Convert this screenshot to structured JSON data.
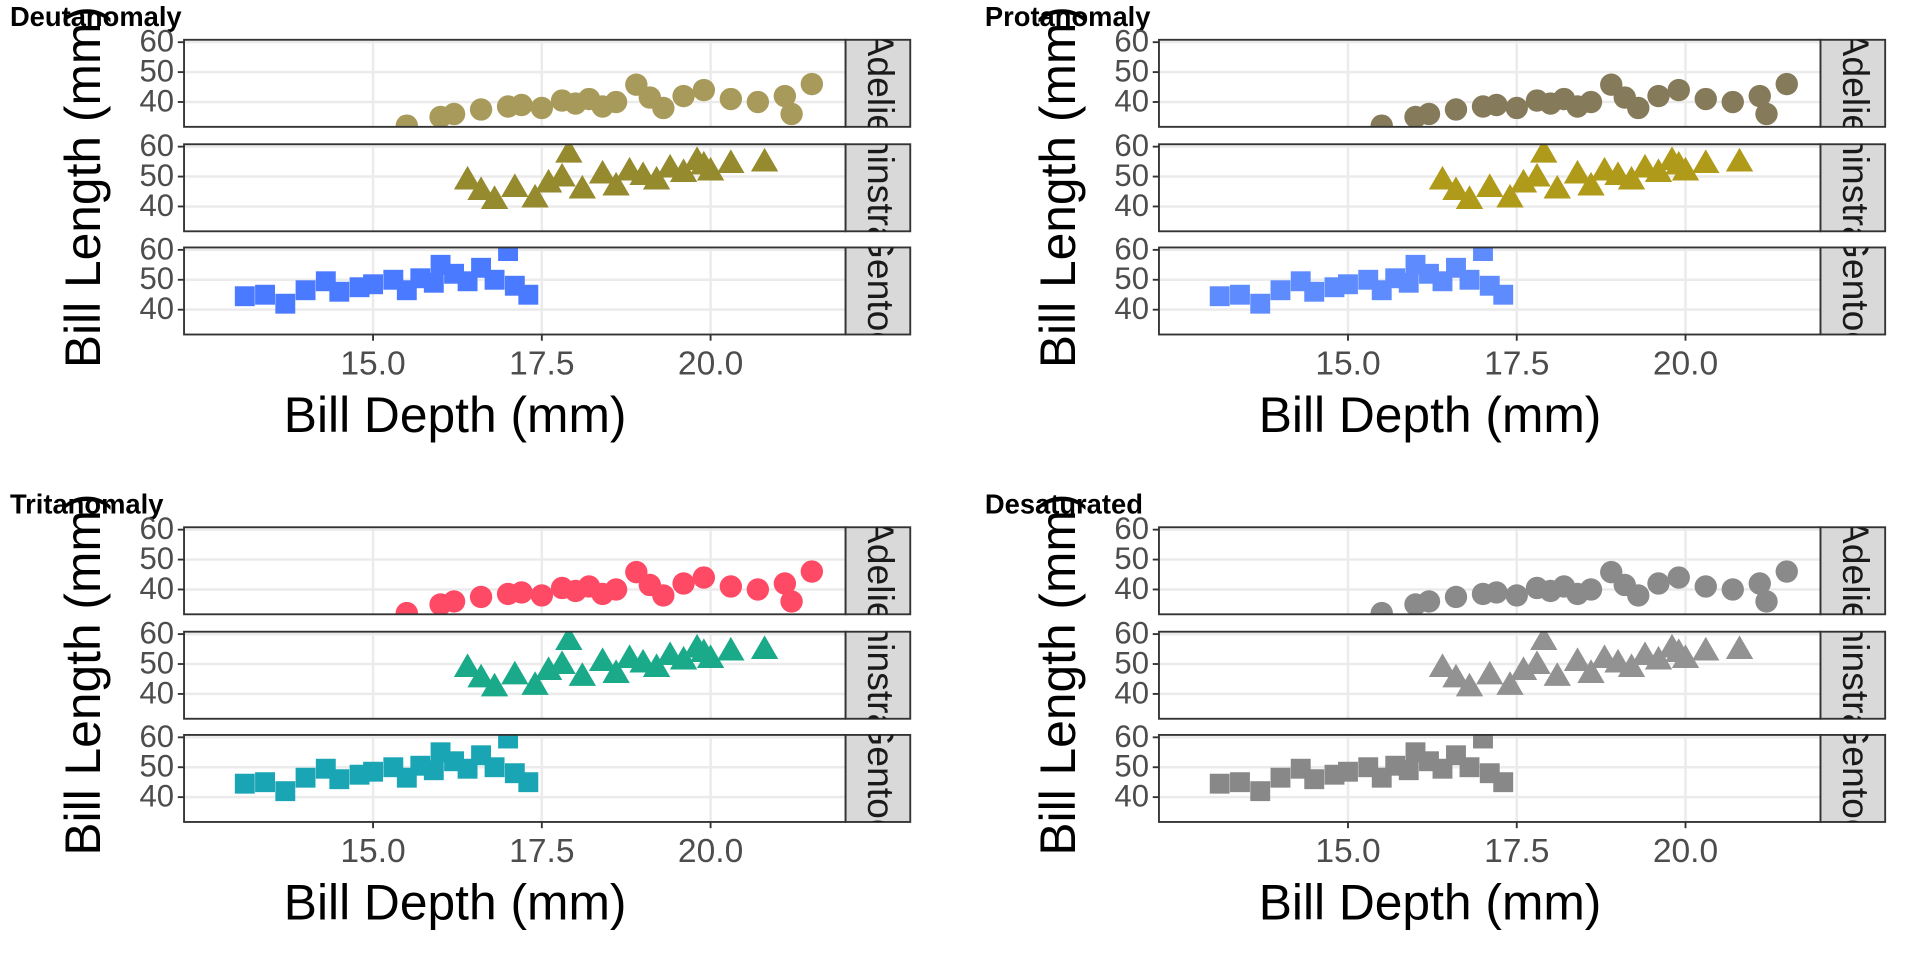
{
  "chart_data": [
    {
      "type": "scatter",
      "title": "Deutanomaly",
      "x_label": "Bill Depth (mm)",
      "y_label": "Bill Length (mm)",
      "xlim": [
        12.2,
        22.0
      ],
      "ylim": [
        31.7,
        60.8
      ],
      "xticks": [
        {
          "value": 15,
          "label": "15.0"
        },
        {
          "value": 17.5,
          "label": "17.5"
        },
        {
          "value": 20,
          "label": "20.0"
        }
      ],
      "yticks": [
        40,
        50,
        60
      ],
      "grid": true,
      "series": [
        {
          "name": "Adelie",
          "color": "#a89a5a",
          "shape": "circle",
          "x": [
            15.5,
            16.0,
            16.2,
            16.6,
            17.0,
            17.2,
            17.5,
            17.8,
            18.0,
            18.2,
            18.4,
            18.6,
            18.9,
            19.1,
            19.3,
            19.6,
            19.9,
            20.3,
            20.7,
            21.1,
            21.2,
            21.5
          ],
          "values": [
            32.1,
            35.0,
            36.0,
            37.5,
            38.5,
            39.0,
            38.0,
            40.5,
            39.5,
            41.0,
            38.5,
            40.0,
            45.8,
            41.5,
            38.0,
            42.0,
            44.0,
            41.0,
            40.0,
            42.0,
            36.0,
            46.0
          ]
        },
        {
          "name": "Chinstrap",
          "color": "#968a2e",
          "shape": "triangle",
          "x": [
            16.4,
            16.6,
            16.8,
            17.1,
            17.4,
            17.6,
            17.8,
            17.9,
            18.1,
            18.4,
            18.6,
            18.8,
            19.0,
            19.2,
            19.4,
            19.6,
            19.8,
            19.9,
            20.0,
            20.3,
            20.8
          ],
          "values": [
            49.0,
            45.5,
            42.5,
            46.5,
            43.0,
            48.0,
            50.0,
            58.0,
            46.0,
            51.0,
            47.0,
            52.0,
            50.5,
            49.0,
            53.0,
            51.5,
            55.5,
            54.0,
            52.0,
            54.5,
            55.0
          ]
        },
        {
          "name": "Gentoo",
          "color": "#4a7aff",
          "shape": "square",
          "x": [
            13.1,
            13.4,
            13.7,
            14.0,
            14.3,
            14.5,
            14.8,
            15.0,
            15.3,
            15.5,
            15.7,
            15.9,
            16.0,
            16.2,
            16.4,
            16.6,
            16.8,
            17.0,
            17.1,
            17.3
          ],
          "values": [
            44.5,
            45.0,
            42.0,
            46.5,
            49.5,
            46.0,
            47.5,
            48.5,
            50.0,
            46.5,
            50.5,
            49.0,
            55.0,
            52.0,
            49.5,
            54.0,
            50.0,
            59.6,
            48.0,
            45.0
          ]
        }
      ]
    },
    {
      "type": "scatter",
      "title": "Protanomaly",
      "x_label": "Bill Depth (mm)",
      "y_label": "Bill Length (mm)",
      "xlim": [
        12.2,
        22.0
      ],
      "ylim": [
        31.7,
        60.8
      ],
      "xticks": [
        {
          "value": 15,
          "label": "15.0"
        },
        {
          "value": 17.5,
          "label": "17.5"
        },
        {
          "value": 20,
          "label": "20.0"
        }
      ],
      "yticks": [
        40,
        50,
        60
      ],
      "grid": true,
      "series": [
        {
          "name": "Adelie",
          "color": "#857a5a",
          "shape": "circle",
          "x": [
            15.5,
            16.0,
            16.2,
            16.6,
            17.0,
            17.2,
            17.5,
            17.8,
            18.0,
            18.2,
            18.4,
            18.6,
            18.9,
            19.1,
            19.3,
            19.6,
            19.9,
            20.3,
            20.7,
            21.1,
            21.2,
            21.5
          ],
          "values": [
            32.1,
            35.0,
            36.0,
            37.5,
            38.5,
            39.0,
            38.0,
            40.5,
            39.5,
            41.0,
            38.5,
            40.0,
            45.8,
            41.5,
            38.0,
            42.0,
            44.0,
            41.0,
            40.0,
            42.0,
            36.0,
            46.0
          ]
        },
        {
          "name": "Chinstrap",
          "color": "#b09a1a",
          "shape": "triangle",
          "x": [
            16.4,
            16.6,
            16.8,
            17.1,
            17.4,
            17.6,
            17.8,
            17.9,
            18.1,
            18.4,
            18.6,
            18.8,
            19.0,
            19.2,
            19.4,
            19.6,
            19.8,
            19.9,
            20.0,
            20.3,
            20.8
          ],
          "values": [
            49.0,
            45.5,
            42.5,
            46.5,
            43.0,
            48.0,
            50.0,
            58.0,
            46.0,
            51.0,
            47.0,
            52.0,
            50.5,
            49.0,
            53.0,
            51.5,
            55.5,
            54.0,
            52.0,
            54.5,
            55.0
          ]
        },
        {
          "name": "Gentoo",
          "color": "#5e8cff",
          "shape": "square",
          "x": [
            13.1,
            13.4,
            13.7,
            14.0,
            14.3,
            14.5,
            14.8,
            15.0,
            15.3,
            15.5,
            15.7,
            15.9,
            16.0,
            16.2,
            16.4,
            16.6,
            16.8,
            17.0,
            17.1,
            17.3
          ],
          "values": [
            44.5,
            45.0,
            42.0,
            46.5,
            49.5,
            46.0,
            47.5,
            48.5,
            50.0,
            46.5,
            50.5,
            49.0,
            55.0,
            52.0,
            49.5,
            54.0,
            50.0,
            59.6,
            48.0,
            45.0
          ]
        }
      ]
    },
    {
      "type": "scatter",
      "title": "Tritanomaly",
      "x_label": "Bill Depth (mm)",
      "y_label": "Bill Length (mm)",
      "xlim": [
        12.2,
        22.0
      ],
      "ylim": [
        31.7,
        60.8
      ],
      "xticks": [
        {
          "value": 15,
          "label": "15.0"
        },
        {
          "value": 17.5,
          "label": "17.5"
        },
        {
          "value": 20,
          "label": "20.0"
        }
      ],
      "yticks": [
        40,
        50,
        60
      ],
      "grid": true,
      "series": [
        {
          "name": "Adelie",
          "color": "#ff4a66",
          "shape": "circle",
          "x": [
            15.5,
            16.0,
            16.2,
            16.6,
            17.0,
            17.2,
            17.5,
            17.8,
            18.0,
            18.2,
            18.4,
            18.6,
            18.9,
            19.1,
            19.3,
            19.6,
            19.9,
            20.3,
            20.7,
            21.1,
            21.2,
            21.5
          ],
          "values": [
            32.1,
            35.0,
            36.0,
            37.5,
            38.5,
            39.0,
            38.0,
            40.5,
            39.5,
            41.0,
            38.5,
            40.0,
            45.8,
            41.5,
            38.0,
            42.0,
            44.0,
            41.0,
            40.0,
            42.0,
            36.0,
            46.0
          ]
        },
        {
          "name": "Chinstrap",
          "color": "#1aaa8a",
          "shape": "triangle",
          "x": [
            16.4,
            16.6,
            16.8,
            17.1,
            17.4,
            17.6,
            17.8,
            17.9,
            18.1,
            18.4,
            18.6,
            18.8,
            19.0,
            19.2,
            19.4,
            19.6,
            19.8,
            19.9,
            20.0,
            20.3,
            20.8
          ],
          "values": [
            49.0,
            45.5,
            42.5,
            46.5,
            43.0,
            48.0,
            50.0,
            58.0,
            46.0,
            51.0,
            47.0,
            52.0,
            50.5,
            49.0,
            53.0,
            51.5,
            55.5,
            54.0,
            52.0,
            54.5,
            55.0
          ]
        },
        {
          "name": "Gentoo",
          "color": "#1aa5b5",
          "shape": "square",
          "x": [
            13.1,
            13.4,
            13.7,
            14.0,
            14.3,
            14.5,
            14.8,
            15.0,
            15.3,
            15.5,
            15.7,
            15.9,
            16.0,
            16.2,
            16.4,
            16.6,
            16.8,
            17.0,
            17.1,
            17.3
          ],
          "values": [
            44.5,
            45.0,
            42.0,
            46.5,
            49.5,
            46.0,
            47.5,
            48.5,
            50.0,
            46.5,
            50.5,
            49.0,
            55.0,
            52.0,
            49.5,
            54.0,
            50.0,
            59.6,
            48.0,
            45.0
          ]
        }
      ]
    },
    {
      "type": "scatter",
      "title": "Desaturated",
      "x_label": "Bill Depth (mm)",
      "y_label": "Bill Length (mm)",
      "xlim": [
        12.2,
        22.0
      ],
      "ylim": [
        31.7,
        60.8
      ],
      "xticks": [
        {
          "value": 15,
          "label": "15.0"
        },
        {
          "value": 17.5,
          "label": "17.5"
        },
        {
          "value": 20,
          "label": "20.0"
        }
      ],
      "yticks": [
        40,
        50,
        60
      ],
      "grid": true,
      "series": [
        {
          "name": "Adelie",
          "color": "#8a8a8a",
          "shape": "circle",
          "x": [
            15.5,
            16.0,
            16.2,
            16.6,
            17.0,
            17.2,
            17.5,
            17.8,
            18.0,
            18.2,
            18.4,
            18.6,
            18.9,
            19.1,
            19.3,
            19.6,
            19.9,
            20.3,
            20.7,
            21.1,
            21.2,
            21.5
          ],
          "values": [
            32.1,
            35.0,
            36.0,
            37.5,
            38.5,
            39.0,
            38.0,
            40.5,
            39.5,
            41.0,
            38.5,
            40.0,
            45.8,
            41.5,
            38.0,
            42.0,
            44.0,
            41.0,
            40.0,
            42.0,
            36.0,
            46.0
          ]
        },
        {
          "name": "Chinstrap",
          "color": "#929292",
          "shape": "triangle",
          "x": [
            16.4,
            16.6,
            16.8,
            17.1,
            17.4,
            17.6,
            17.8,
            17.9,
            18.1,
            18.4,
            18.6,
            18.8,
            19.0,
            19.2,
            19.4,
            19.6,
            19.8,
            19.9,
            20.0,
            20.3,
            20.8
          ],
          "values": [
            49.0,
            45.5,
            42.5,
            46.5,
            43.0,
            48.0,
            50.0,
            58.0,
            46.0,
            51.0,
            47.0,
            52.0,
            50.5,
            49.0,
            53.0,
            51.5,
            55.5,
            54.0,
            52.0,
            54.5,
            55.0
          ]
        },
        {
          "name": "Gentoo",
          "color": "#888888",
          "shape": "square",
          "x": [
            13.1,
            13.4,
            13.7,
            14.0,
            14.3,
            14.5,
            14.8,
            15.0,
            15.3,
            15.5,
            15.7,
            15.9,
            16.0,
            16.2,
            16.4,
            16.6,
            16.8,
            17.0,
            17.1,
            17.3
          ],
          "values": [
            44.5,
            45.0,
            42.0,
            46.5,
            49.5,
            46.0,
            47.5,
            48.5,
            50.0,
            46.5,
            50.5,
            49.0,
            55.0,
            52.0,
            49.5,
            54.0,
            50.0,
            59.6,
            48.0,
            45.0
          ]
        }
      ]
    }
  ]
}
